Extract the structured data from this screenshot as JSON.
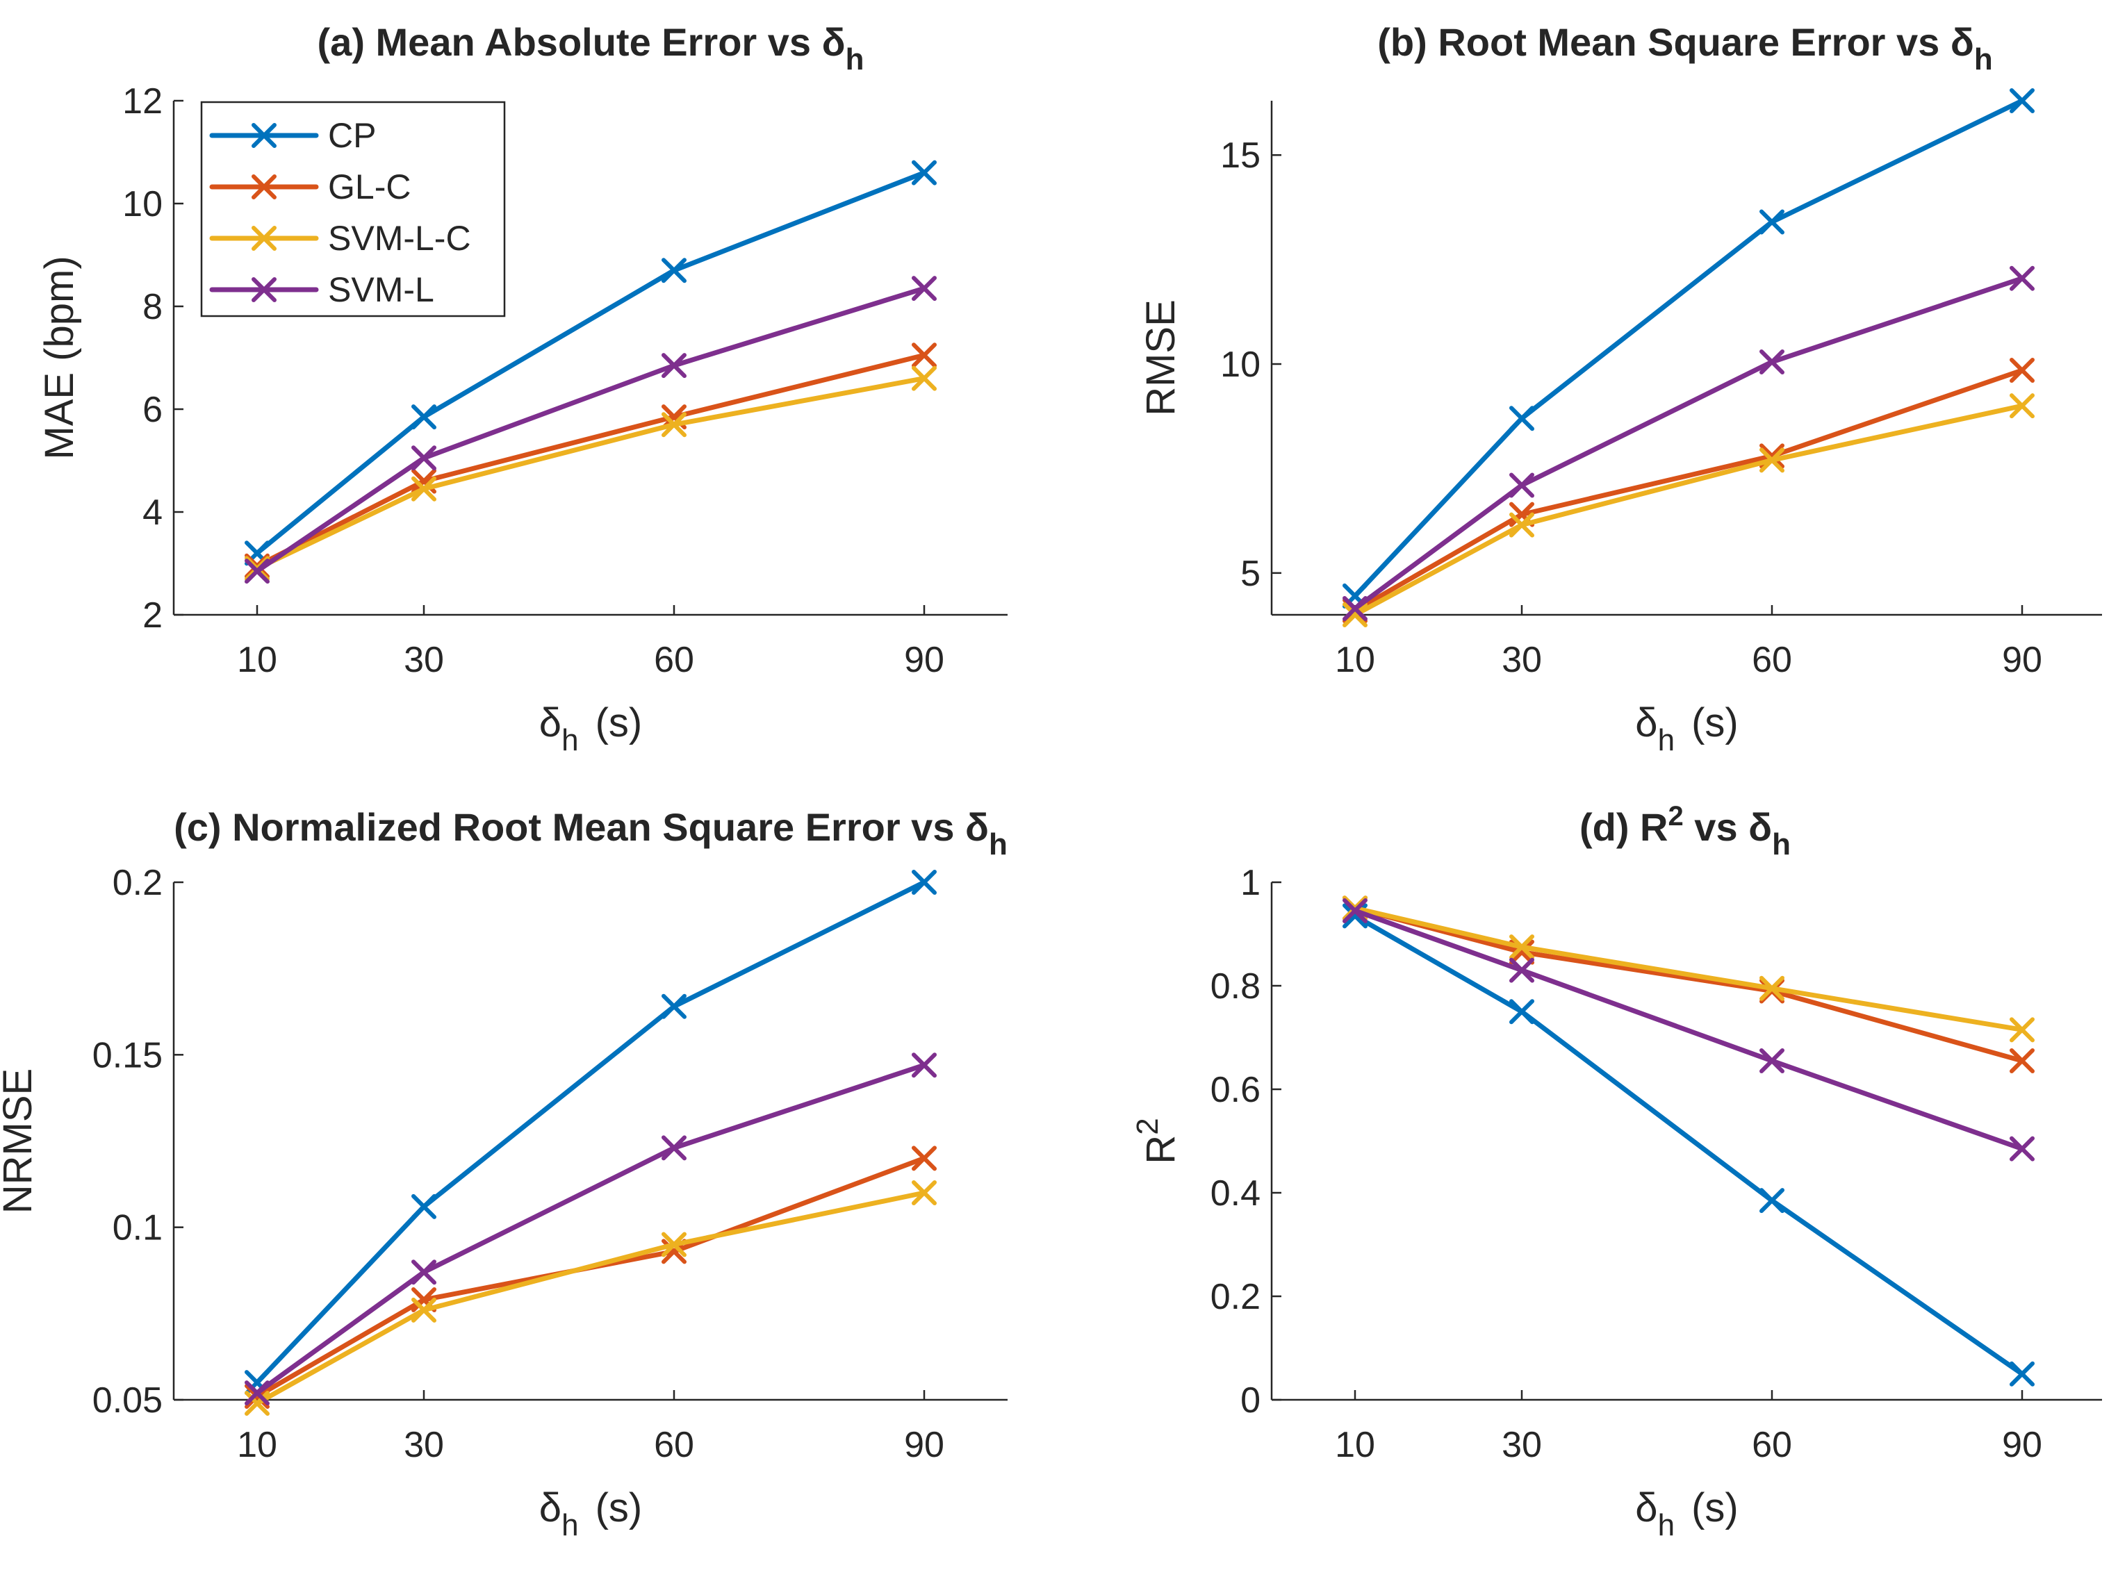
{
  "chart_data": [
    {
      "type": "line",
      "title": "(a) Mean Absolute Error vs δ",
      "title_sub": "h",
      "xlabel": "δ",
      "xlabel_sub": "h",
      "xlabel_unit": "(s)",
      "ylabel": "MAE (bpm)",
      "categories": [
        "10",
        "30",
        "60",
        "90"
      ],
      "ylim": [
        2,
        12
      ],
      "yticks": [
        2,
        4,
        6,
        8,
        10,
        12
      ],
      "ytick_labels": [
        "2",
        "4",
        "6",
        "8",
        "10",
        "12"
      ],
      "series": [
        {
          "name": "CP",
          "values": [
            3.2,
            5.85,
            8.7,
            10.6
          ]
        },
        {
          "name": "GL-C",
          "values": [
            2.95,
            4.6,
            5.85,
            7.05
          ]
        },
        {
          "name": "SVM-L-C",
          "values": [
            2.9,
            4.45,
            5.7,
            6.6
          ]
        },
        {
          "name": "SVM-L",
          "values": [
            2.85,
            5.05,
            6.85,
            8.35
          ]
        }
      ]
    },
    {
      "type": "line",
      "title": "(b) Root Mean Square Error vs δ",
      "title_sub": "h",
      "xlabel": "δ",
      "xlabel_sub": "h",
      "xlabel_unit": "(s)",
      "ylabel": "RMSE",
      "categories": [
        "10",
        "30",
        "60",
        "90"
      ],
      "ylim": [
        4,
        16.3
      ],
      "yticks": [
        5,
        10,
        15
      ],
      "ytick_labels": [
        "5",
        "10",
        "15"
      ],
      "series": [
        {
          "name": "CP",
          "values": [
            4.45,
            8.7,
            13.4,
            16.3
          ]
        },
        {
          "name": "GL-C",
          "values": [
            4.1,
            6.4,
            7.8,
            9.85
          ]
        },
        {
          "name": "SVM-L-C",
          "values": [
            4.0,
            6.15,
            7.7,
            9.0
          ]
        },
        {
          "name": "SVM-L",
          "values": [
            4.15,
            7.1,
            10.05,
            12.05
          ]
        }
      ]
    },
    {
      "type": "line",
      "title": "(c) Normalized Root Mean Square Error vs δ",
      "title_sub": "h",
      "xlabel": "δ",
      "xlabel_sub": "h",
      "xlabel_unit": "(s)",
      "ylabel": "NRMSE",
      "categories": [
        "10",
        "30",
        "60",
        "90"
      ],
      "ylim": [
        0.05,
        0.2
      ],
      "yticks": [
        0.05,
        0.1,
        0.15,
        0.2
      ],
      "ytick_labels": [
        "0.05",
        "0.1",
        "0.15",
        "0.2"
      ],
      "series": [
        {
          "name": "CP",
          "values": [
            0.055,
            0.106,
            0.164,
            0.2
          ]
        },
        {
          "name": "GL-C",
          "values": [
            0.051,
            0.079,
            0.093,
            0.12
          ]
        },
        {
          "name": "SVM-L-C",
          "values": [
            0.049,
            0.076,
            0.095,
            0.11
          ]
        },
        {
          "name": "SVM-L",
          "values": [
            0.052,
            0.087,
            0.123,
            0.147
          ]
        }
      ]
    },
    {
      "type": "line",
      "title": "(d) R",
      "title_sup": "2",
      "title_tail": " vs δ",
      "title_sub": "h",
      "xlabel": "δ",
      "xlabel_sub": "h",
      "xlabel_unit": "(s)",
      "ylabel": "R",
      "ylabel_sup": "2",
      "categories": [
        "10",
        "30",
        "60",
        "90"
      ],
      "ylim": [
        0,
        1
      ],
      "yticks": [
        0,
        0.2,
        0.4,
        0.6,
        0.8,
        1
      ],
      "ytick_labels": [
        "0",
        "0.2",
        "0.4",
        "0.6",
        "0.8",
        "1"
      ],
      "series": [
        {
          "name": "CP",
          "values": [
            0.935,
            0.75,
            0.385,
            0.05
          ]
        },
        {
          "name": "GL-C",
          "values": [
            0.95,
            0.865,
            0.79,
            0.655
          ]
        },
        {
          "name": "SVM-L-C",
          "values": [
            0.95,
            0.875,
            0.795,
            0.715
          ]
        },
        {
          "name": "SVM-L",
          "values": [
            0.945,
            0.83,
            0.655,
            0.485
          ]
        }
      ]
    }
  ],
  "legend": {
    "entries": [
      "CP",
      "GL-C",
      "SVM-L-C",
      "SVM-L"
    ],
    "placement": "top-left of panel (a)"
  },
  "colors": {
    "CP": "#0072BD",
    "GL-C": "#D95319",
    "SVM-L-C": "#EDB120",
    "SVM-L": "#7E2F8E"
  }
}
